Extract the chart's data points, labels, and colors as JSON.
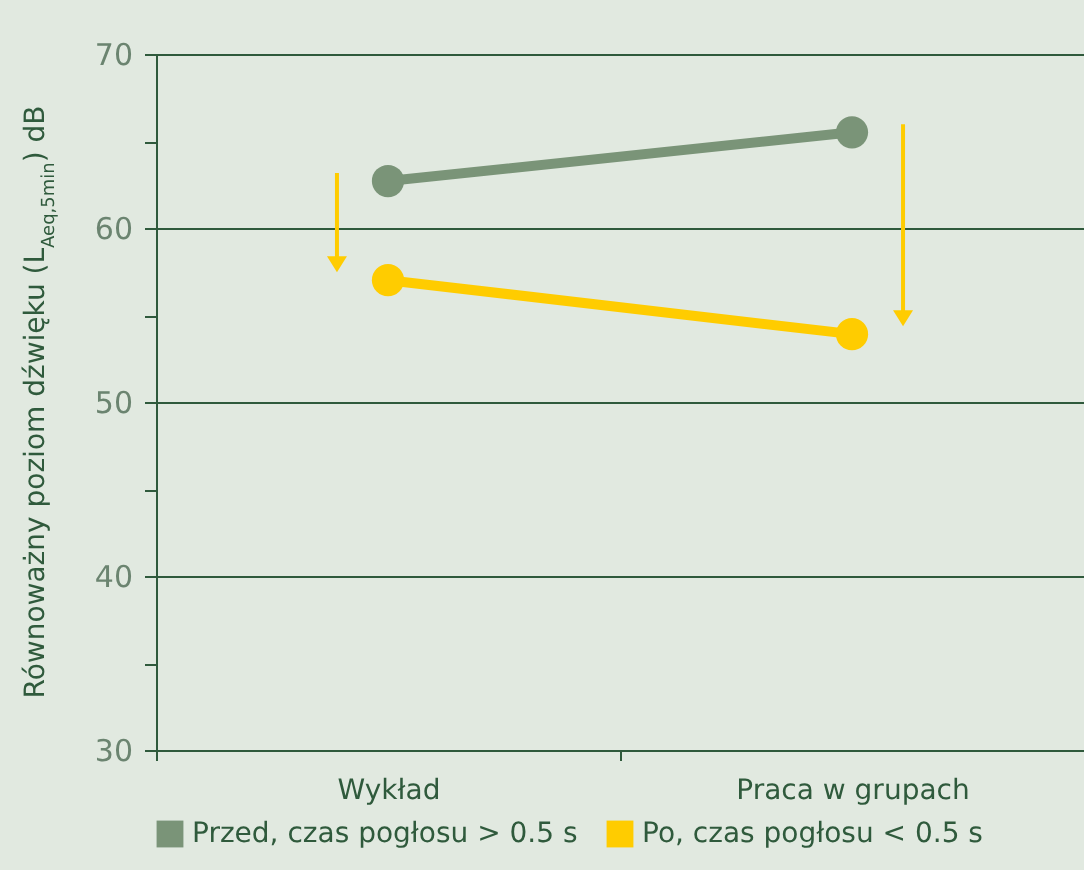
{
  "chart_data": {
    "type": "line",
    "ylabel": "Równoważny poziom dźwięku (L$_{Aeq,5min}$) dB",
    "categories": [
      "Wykład",
      "Praca w grupach"
    ],
    "series": [
      {
        "name": "Przed, czas pogłosu > 0.5 s",
        "color": "#7a9478",
        "values": [
          62.7,
          65.5
        ]
      },
      {
        "name": "Po, czas pogłosu < 0.5 s",
        "color": "#ffcc00",
        "values": [
          57.0,
          53.9
        ]
      }
    ],
    "ylim": [
      30,
      70
    ],
    "yticks": [
      30,
      {
        "value": 35,
        "label": null
      },
      40,
      {
        "value": 45,
        "label": null
      },
      50,
      {
        "value": 55,
        "label": null
      },
      60,
      {
        "value": 65,
        "label": null
      },
      70
    ],
    "grid": "y",
    "legend": "bottom",
    "marker": "circle",
    "line_style": "solid"
  }
}
